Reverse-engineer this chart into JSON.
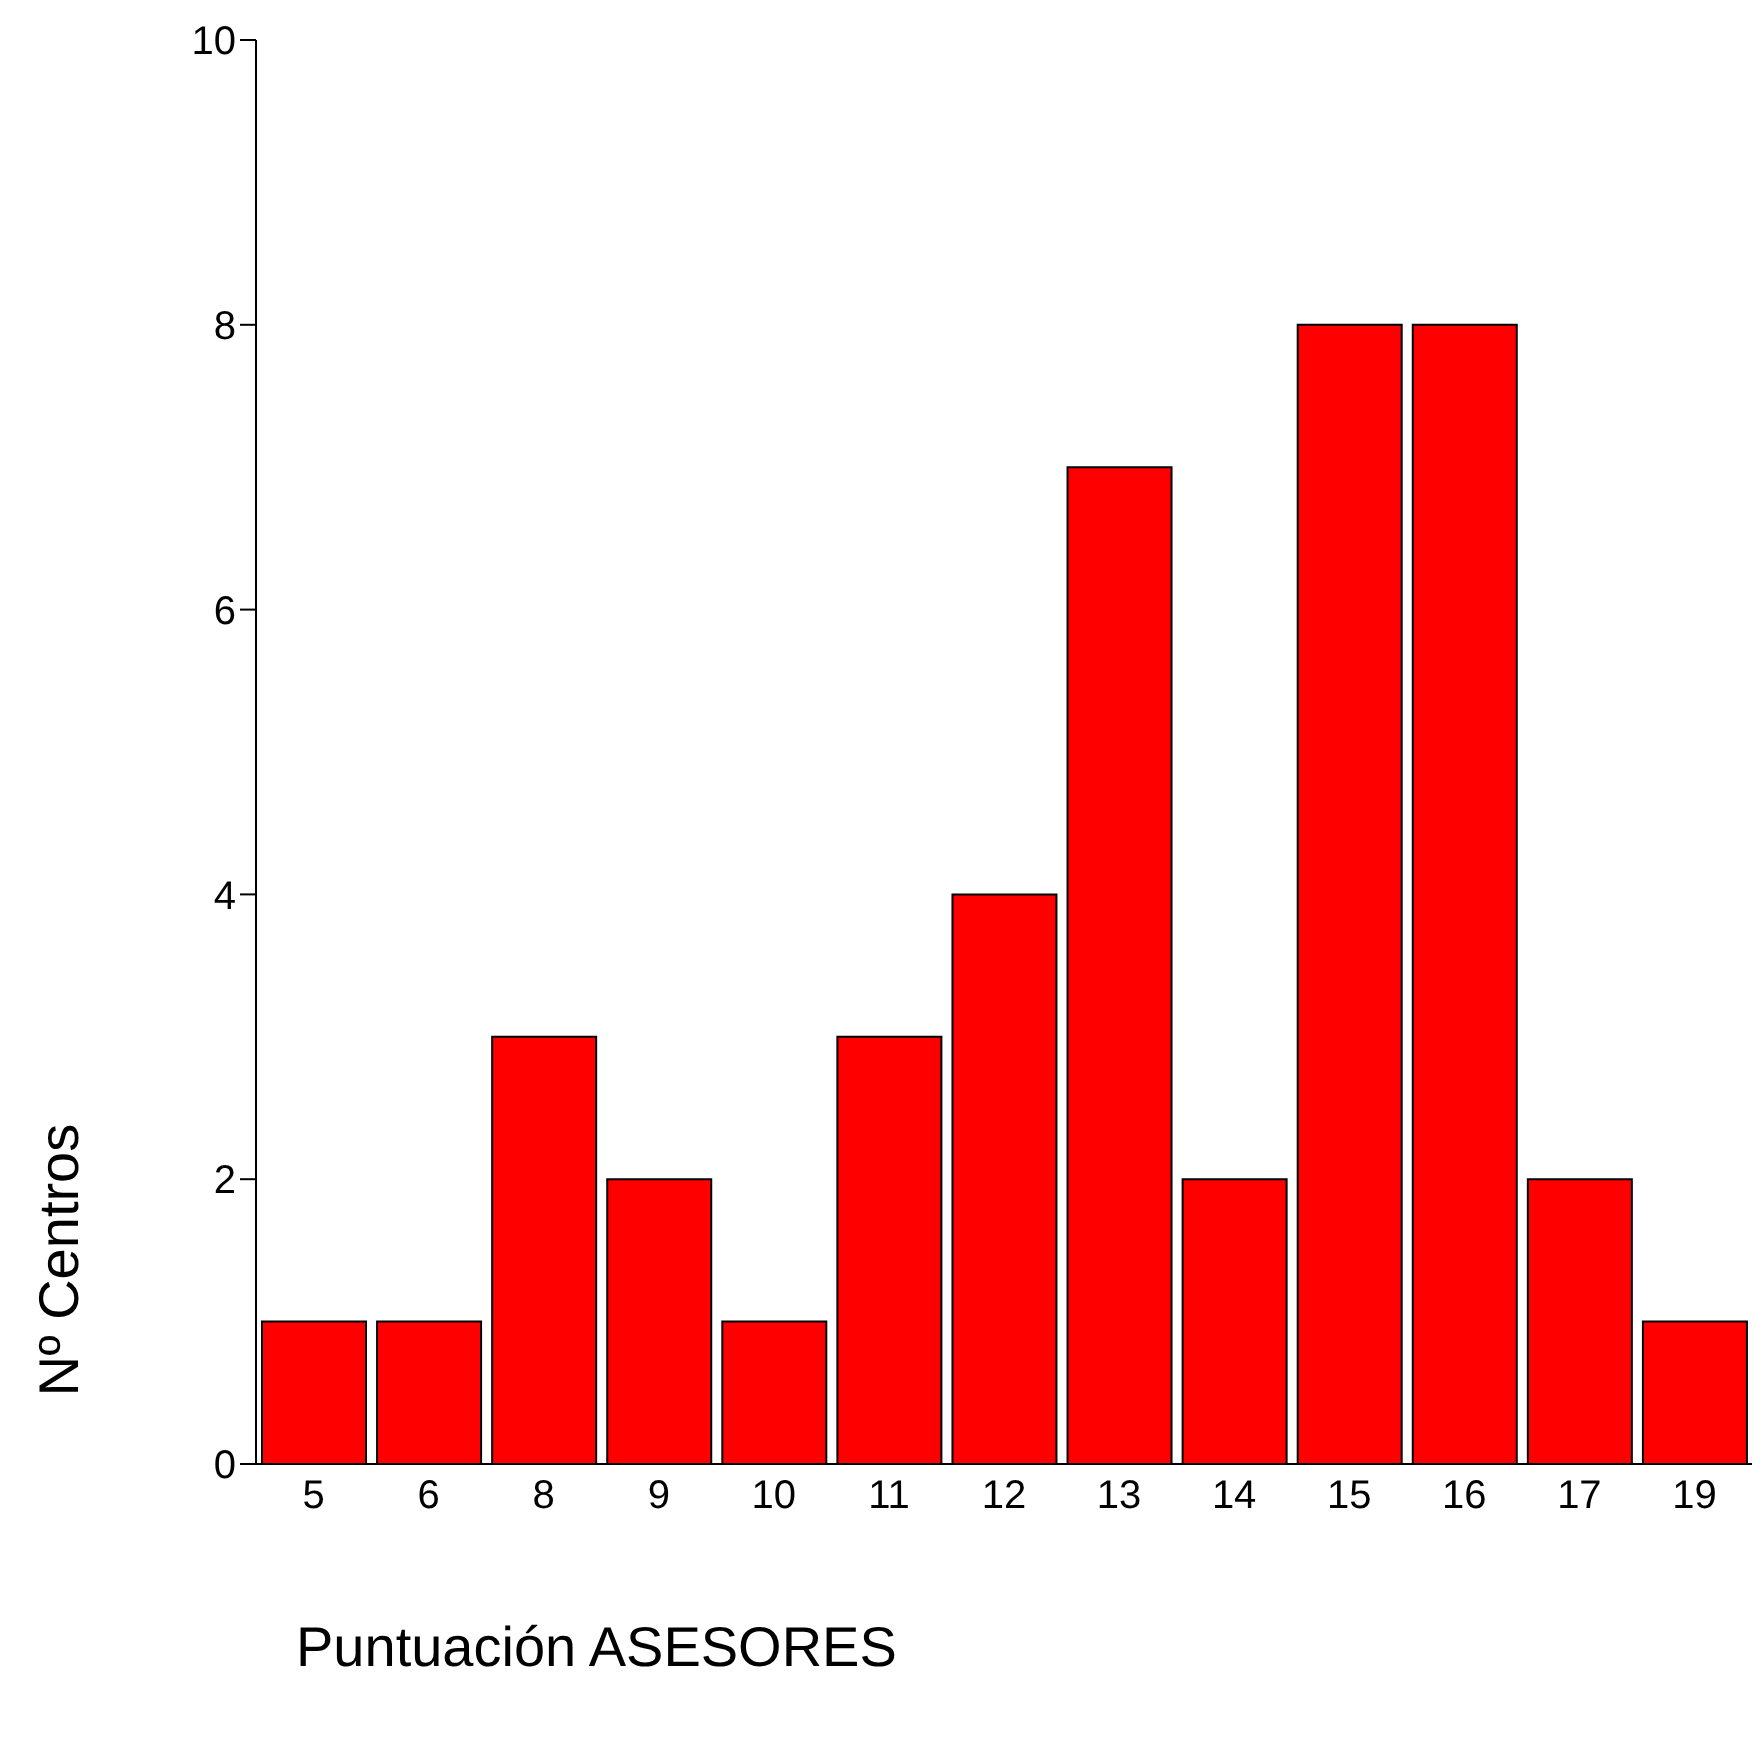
{
  "chart_data": {
    "type": "bar",
    "xlabel": "Puntuación ASESORES",
    "ylabel": "Nº Centros",
    "categories": [
      "5",
      "6",
      "8",
      "9",
      "10",
      "11",
      "12",
      "13",
      "14",
      "15",
      "16",
      "17",
      "19"
    ],
    "values": [
      1,
      1,
      3,
      2,
      1,
      3,
      4,
      7,
      2,
      8,
      8,
      2,
      1
    ],
    "color": "#ff0000",
    "ylim": [
      0,
      10
    ],
    "yticks": [
      0,
      2,
      4,
      6,
      8,
      10
    ],
    "grid": false,
    "legend": false
  }
}
